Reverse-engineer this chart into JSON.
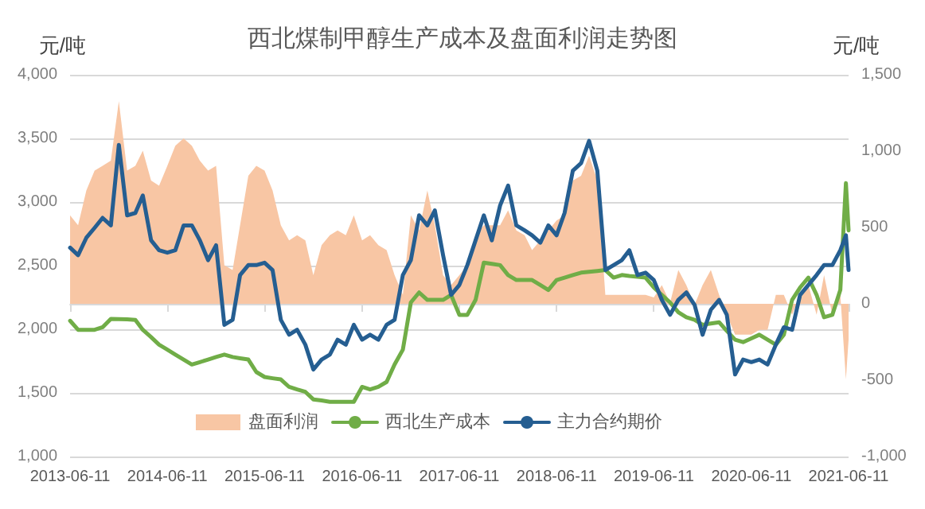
{
  "chart_data": {
    "type": "line",
    "title": "西北煤制甲醇生产成本及盘面利润走势图",
    "ylabel": "元/吨",
    "y2label": "元/吨",
    "x": [
      "2013-06-11",
      "2013-07-11",
      "2013-08-11",
      "2013-09-11",
      "2013-10-11",
      "2013-11-11",
      "2013-12-11",
      "2014-01-11",
      "2014-02-11",
      "2014-03-11",
      "2014-04-11",
      "2014-05-11",
      "2014-06-11",
      "2014-07-11",
      "2014-08-11",
      "2014-09-11",
      "2014-10-11",
      "2014-11-11",
      "2014-12-11",
      "2015-01-11",
      "2015-02-11",
      "2015-03-11",
      "2015-04-11",
      "2015-05-11",
      "2015-06-11",
      "2015-07-11",
      "2015-08-11",
      "2015-09-11",
      "2015-10-11",
      "2015-11-11",
      "2015-12-11",
      "2016-01-11",
      "2016-02-11",
      "2016-03-11",
      "2016-04-11",
      "2016-05-11",
      "2016-06-11",
      "2016-07-11",
      "2016-08-11",
      "2016-09-11",
      "2016-10-11",
      "2016-11-11",
      "2016-12-11",
      "2017-01-11",
      "2017-02-11",
      "2017-03-11",
      "2017-04-11",
      "2017-05-11",
      "2017-06-11",
      "2017-07-11",
      "2017-08-11",
      "2017-09-11",
      "2017-10-11",
      "2017-11-11",
      "2017-12-11",
      "2018-01-11",
      "2018-02-11",
      "2018-03-11",
      "2018-04-11",
      "2018-05-11",
      "2018-06-11",
      "2018-07-11",
      "2018-08-11",
      "2018-09-11",
      "2018-10-11",
      "2018-11-11",
      "2018-12-11",
      "2019-01-11",
      "2019-02-11",
      "2019-03-11",
      "2019-04-11",
      "2019-05-11",
      "2019-06-11",
      "2019-07-11",
      "2019-08-11",
      "2019-09-11",
      "2019-10-11",
      "2019-11-11",
      "2019-12-11",
      "2020-01-11",
      "2020-02-11",
      "2020-03-11",
      "2020-04-11",
      "2020-05-11",
      "2020-06-11",
      "2020-07-11",
      "2020-08-11",
      "2020-09-11",
      "2020-10-11",
      "2020-11-11",
      "2020-12-11",
      "2021-01-11",
      "2021-02-11",
      "2021-03-11",
      "2021-04-11",
      "2021-05-11",
      "2021-06-01",
      "2021-06-11"
    ],
    "series": [
      {
        "name": "盘面利润",
        "type": "area",
        "axis": "y2",
        "color": "#f8c6a4",
        "values": [
          579,
          514,
          742,
          872,
          904,
          937,
          1327,
          872,
          904,
          1002,
          807,
          774,
          904,
          1035,
          1083,
          1035,
          937,
          872,
          904,
          253,
          221,
          514,
          839,
          904,
          872,
          742,
          514,
          416,
          449,
          416,
          188,
          384,
          449,
          481,
          449,
          579,
          416,
          449,
          384,
          351,
          188,
          58,
          579,
          481,
          742,
          514,
          188,
          123,
          188,
          253,
          449,
          514,
          514,
          514,
          612,
          481,
          449,
          351,
          416,
          481,
          546,
          579,
          807,
          839,
          970,
          807,
          58,
          58,
          58,
          58,
          58,
          58,
          42,
          123,
          7,
          221,
          123,
          -7,
          123,
          221,
          58,
          -72,
          -202,
          -202,
          -202,
          -170,
          -170,
          58,
          58,
          -72,
          58,
          123,
          -72,
          188,
          -72,
          58,
          -495,
          -235
        ]
      },
      {
        "name": "西北生产成本",
        "color": "#70ad47",
        "values": [
          2067,
          1996,
          1996,
          1996,
          2016,
          2082,
          2080,
          2078,
          2074,
          1996,
          1938,
          1879,
          1840,
          1801,
          1762,
          1723,
          1742,
          1762,
          1782,
          1801,
          1782,
          1772,
          1762,
          1664,
          1625,
          1615,
          1606,
          1547,
          1527,
          1508,
          1449,
          1440,
          1430,
          1430,
          1430,
          1430,
          1547,
          1527,
          1547,
          1586,
          1723,
          1840,
          2211,
          2289,
          2231,
          2231,
          2231,
          2270,
          2113,
          2113,
          2231,
          2524,
          2514,
          2504,
          2426,
          2387,
          2387,
          2387,
          2348,
          2309,
          2387,
          2406,
          2426,
          2445,
          2452,
          2458,
          2465,
          2406,
          2426,
          2419,
          2413,
          2406,
          2328,
          2270,
          2211,
          2133,
          2094,
          2074,
          2035,
          2045,
          2055,
          1987,
          1918,
          1899,
          1928,
          1957,
          1918,
          1879,
          1957,
          2231,
          2328,
          2406,
          2270,
          2094,
          2113,
          2309,
          3148,
          2777
        ]
      },
      {
        "name": "主力合约期价",
        "color": "#255e91",
        "values": [
          2641,
          2582,
          2719,
          2797,
          2875,
          2816,
          3449,
          2895,
          2914,
          3051,
          2699,
          2621,
          2602,
          2621,
          2816,
          2816,
          2699,
          2543,
          2660,
          2035,
          2074,
          2426,
          2504,
          2504,
          2523,
          2465,
          2074,
          1957,
          1996,
          1879,
          1684,
          1762,
          1801,
          1918,
          1879,
          2035,
          1918,
          1957,
          1918,
          2035,
          2074,
          2426,
          2543,
          2895,
          2816,
          2934,
          2582,
          2270,
          2348,
          2504,
          2699,
          2895,
          2699,
          2973,
          3129,
          2816,
          2777,
          2738,
          2680,
          2816,
          2738,
          2914,
          3246,
          3305,
          3480,
          3246,
          2465,
          2504,
          2543,
          2621,
          2426,
          2445,
          2387,
          2231,
          2113,
          2231,
          2289,
          2192,
          1957,
          2153,
          2231,
          2113,
          1645,
          1762,
          1742,
          1762,
          1723,
          1879,
          2016,
          1996,
          2270,
          2348,
          2426,
          2504,
          2504,
          2621,
          2738,
          2465
        ]
      }
    ],
    "xlim": [
      "2013-06-11",
      "2021-06-11"
    ],
    "xticks": [
      "2013-06-11",
      "2014-06-11",
      "2015-06-11",
      "2016-06-11",
      "2017-06-11",
      "2018-06-11",
      "2019-06-11",
      "2020-06-11",
      "2021-06-11"
    ],
    "ylim": [
      1000,
      4000
    ],
    "yticks": [
      {
        "value": 1000,
        "label": "1,000"
      },
      {
        "value": 1500,
        "label": "1,500"
      },
      {
        "value": 2000,
        "label": "2,000"
      },
      {
        "value": 2500,
        "label": "2,500"
      },
      {
        "value": 3000,
        "label": "3,000"
      },
      {
        "value": 3500,
        "label": "3,500"
      },
      {
        "value": 4000,
        "label": "4,000"
      }
    ],
    "y2lim": [
      -1000,
      1500
    ],
    "y2ticks": [
      {
        "value": -1000,
        "label": "-1,000"
      },
      -500,
      0,
      500,
      {
        "value": 1000,
        "label": "1,000"
      },
      {
        "value": 1500,
        "label": "1,500"
      }
    ],
    "grid": "y",
    "legend": "bottom",
    "marker": "none",
    "line_style": "solid"
  }
}
